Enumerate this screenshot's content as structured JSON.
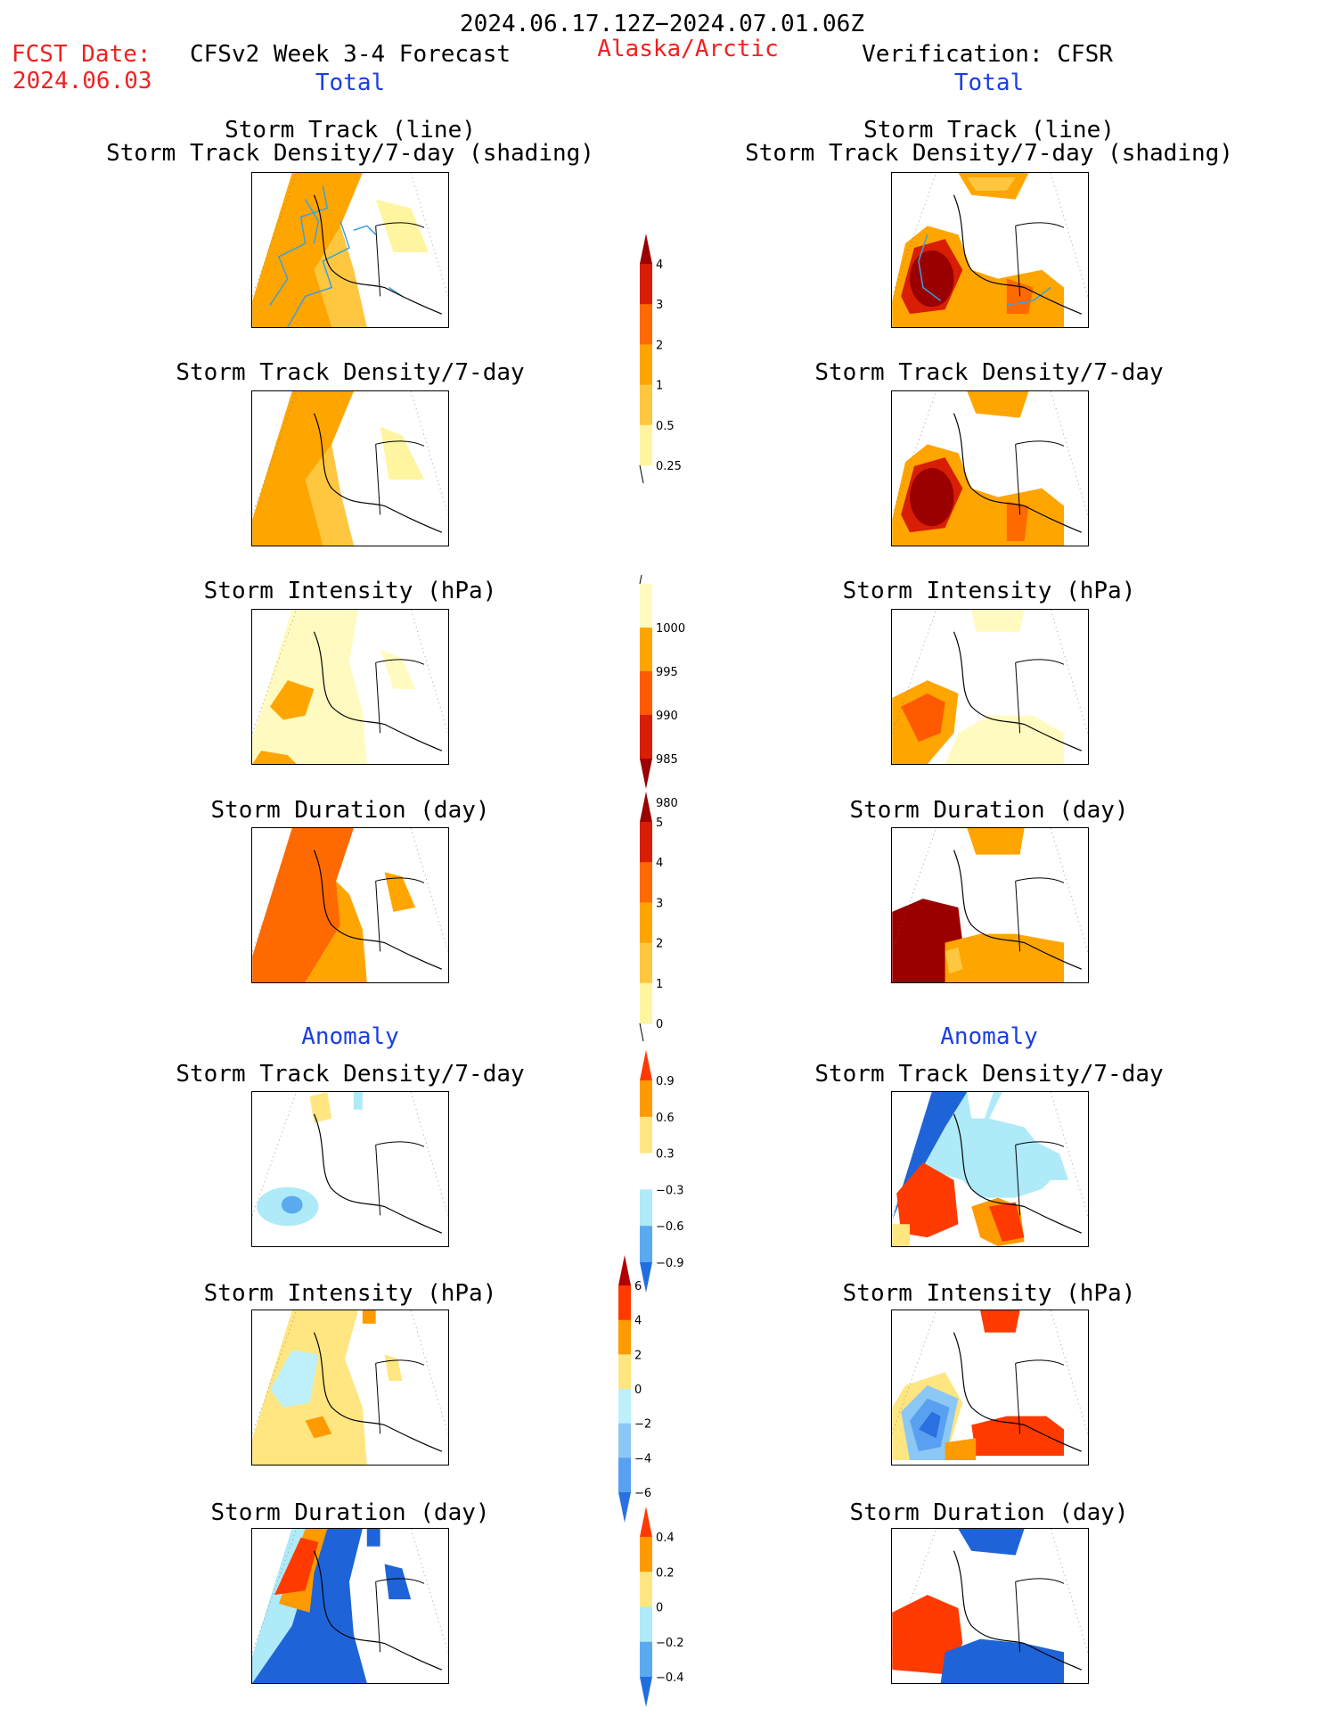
{
  "header": {
    "period": "2024.06.17.12Z−2024.07.01.06Z",
    "fcst_label": "FCST Date:",
    "fcst_date": "2024.06.03",
    "model": "CFSv2 Week 3-4 Forecast",
    "region": "Alaska/Arctic",
    "verification": "Verification: CFSR"
  },
  "sections": {
    "total": "Total",
    "anomaly": "Anomaly"
  },
  "panel_titles": {
    "track_line": "Storm Track (line)",
    "track_shading": "Storm Track Density/7-day (shading)",
    "density": "Storm Track Density/7-day",
    "intensity": "Storm Intensity (hPa)",
    "duration": "Storm Duration (day)"
  },
  "colorbars": {
    "density": {
      "ticks": [
        "4",
        "3",
        "2",
        "1",
        "0.5",
        "0.25"
      ],
      "colors": [
        "#9b0000",
        "#d81e05",
        "#ff6a00",
        "#ffa500",
        "#ffc740",
        "#fff5a0"
      ]
    },
    "intensity": {
      "ticks": [
        "1000",
        "995",
        "990",
        "985",
        "980"
      ],
      "colors": [
        "#fffbc0",
        "#ffa500",
        "#ff5a00",
        "#d81e05",
        "#9b0000"
      ]
    },
    "duration": {
      "ticks": [
        "5",
        "4",
        "3",
        "2",
        "1",
        "0"
      ],
      "colors": [
        "#9b0000",
        "#d81e05",
        "#ff6a00",
        "#ffa500",
        "#ffc740",
        "#fff5a0"
      ]
    },
    "anom_density": {
      "ticks": [
        "0.9",
        "0.6",
        "0.3",
        "−0.3",
        "−0.6",
        "−0.9"
      ],
      "colors": [
        "#ff3a00",
        "#ff9a00",
        "#ffe680",
        "#ffffff",
        "#aeeaf8",
        "#5aaaf0",
        "#1e6ee0"
      ]
    },
    "anom_intensity": {
      "ticks": [
        "6",
        "4",
        "2",
        "0",
        "−2",
        "−4",
        "−6"
      ],
      "colors": [
        "#b00000",
        "#ff3a00",
        "#ff9a00",
        "#ffe680",
        "#bdf0fa",
        "#8cc8f5",
        "#5aa0f0",
        "#2a70e0"
      ]
    },
    "anom_duration": {
      "ticks": [
        "0.4",
        "0.2",
        "0",
        "−0.2",
        "−0.4"
      ],
      "colors": [
        "#ff3a00",
        "#ff9a00",
        "#ffe680",
        "#aeeaf8",
        "#5aaaf0",
        "#1e6ee0"
      ]
    }
  },
  "map_colors": {
    "light_yellow": "#fff5a0",
    "yellow": "#ffd860",
    "orange": "#ffa500",
    "dark_orange": "#ff6a00",
    "red": "#e81e05",
    "dark_red": "#9b0000",
    "light_blue": "#aeeaf8",
    "mid_blue": "#5aaaf0",
    "blue": "#1e64d8",
    "track_line": "#3aa0e0"
  }
}
